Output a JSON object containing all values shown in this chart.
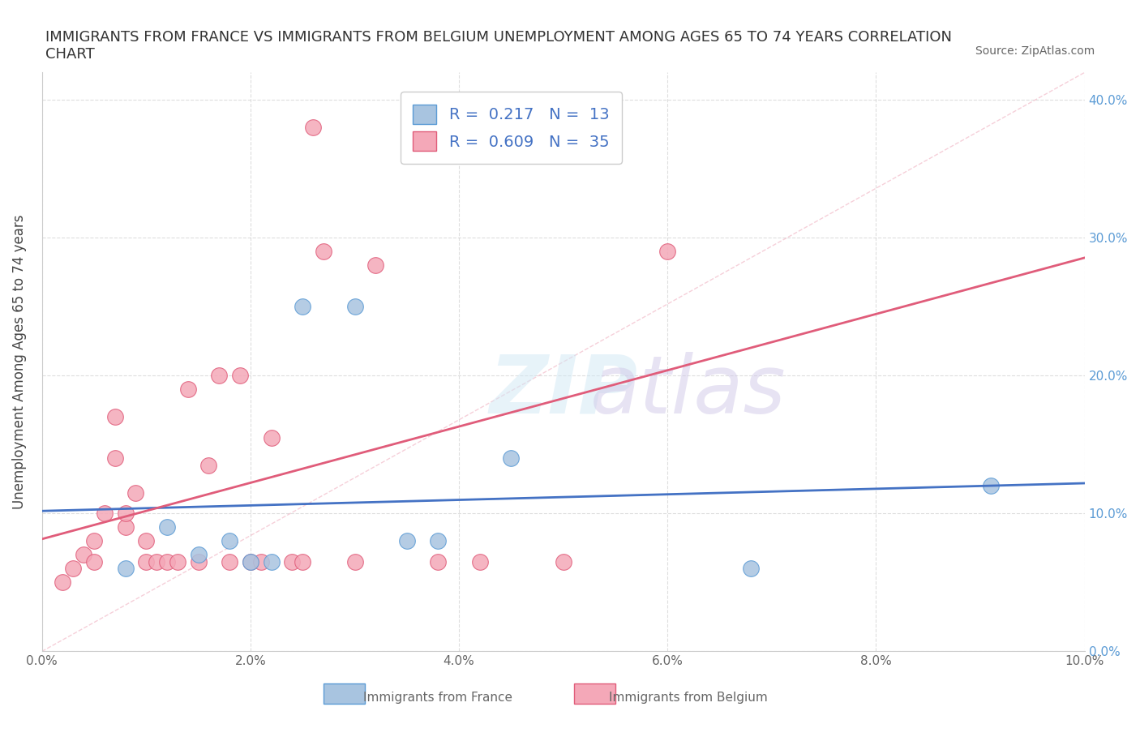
{
  "title": "IMMIGRANTS FROM FRANCE VS IMMIGRANTS FROM BELGIUM UNEMPLOYMENT AMONG AGES 65 TO 74 YEARS CORRELATION\nCHART",
  "source_text": "Source: ZipAtlas.com",
  "xlabel": "",
  "ylabel": "Unemployment Among Ages 65 to 74 years",
  "xlim": [
    0.0,
    0.1
  ],
  "ylim": [
    0.0,
    0.42
  ],
  "xticks": [
    0.0,
    0.02,
    0.04,
    0.06,
    0.08,
    0.1
  ],
  "yticks": [
    0.0,
    0.1,
    0.2,
    0.3,
    0.4
  ],
  "xtick_labels": [
    "0.0%",
    "2.0%",
    "4.0%",
    "6.0%",
    "8.0%",
    "10.0%"
  ],
  "ytick_labels": [
    "0.0%",
    "10.0%",
    "20.0%",
    "30.0%",
    "40.0%"
  ],
  "france_color": "#a8c4e0",
  "france_edge_color": "#5b9bd5",
  "belgium_color": "#f4a8b8",
  "belgium_edge_color": "#e05c7a",
  "france_R": 0.217,
  "france_N": 13,
  "belgium_R": 0.609,
  "belgium_N": 35,
  "legend_label_france": "Immigrants from France",
  "legend_label_belgium": "Immigrants from Belgium",
  "watermark": "ZIPatlas",
  "france_points_x": [
    0.008,
    0.012,
    0.015,
    0.018,
    0.02,
    0.022,
    0.025,
    0.03,
    0.035,
    0.038,
    0.045,
    0.068,
    0.091
  ],
  "france_points_y": [
    0.06,
    0.09,
    0.07,
    0.08,
    0.065,
    0.065,
    0.25,
    0.25,
    0.08,
    0.08,
    0.14,
    0.06,
    0.12
  ],
  "belgium_points_x": [
    0.002,
    0.003,
    0.004,
    0.005,
    0.005,
    0.006,
    0.007,
    0.007,
    0.008,
    0.008,
    0.009,
    0.01,
    0.01,
    0.011,
    0.012,
    0.013,
    0.014,
    0.015,
    0.016,
    0.017,
    0.018,
    0.019,
    0.02,
    0.021,
    0.022,
    0.024,
    0.025,
    0.026,
    0.027,
    0.03,
    0.032,
    0.038,
    0.042,
    0.05,
    0.06
  ],
  "belgium_points_y": [
    0.05,
    0.06,
    0.07,
    0.065,
    0.08,
    0.1,
    0.14,
    0.17,
    0.09,
    0.1,
    0.115,
    0.065,
    0.08,
    0.065,
    0.065,
    0.065,
    0.19,
    0.065,
    0.135,
    0.2,
    0.065,
    0.2,
    0.065,
    0.065,
    0.155,
    0.065,
    0.065,
    0.38,
    0.29,
    0.065,
    0.28,
    0.065,
    0.065,
    0.065,
    0.29
  ],
  "grid_color": "#d0d0d0",
  "right_ytick_color": "#5b9bd5",
  "background_color": "#ffffff"
}
